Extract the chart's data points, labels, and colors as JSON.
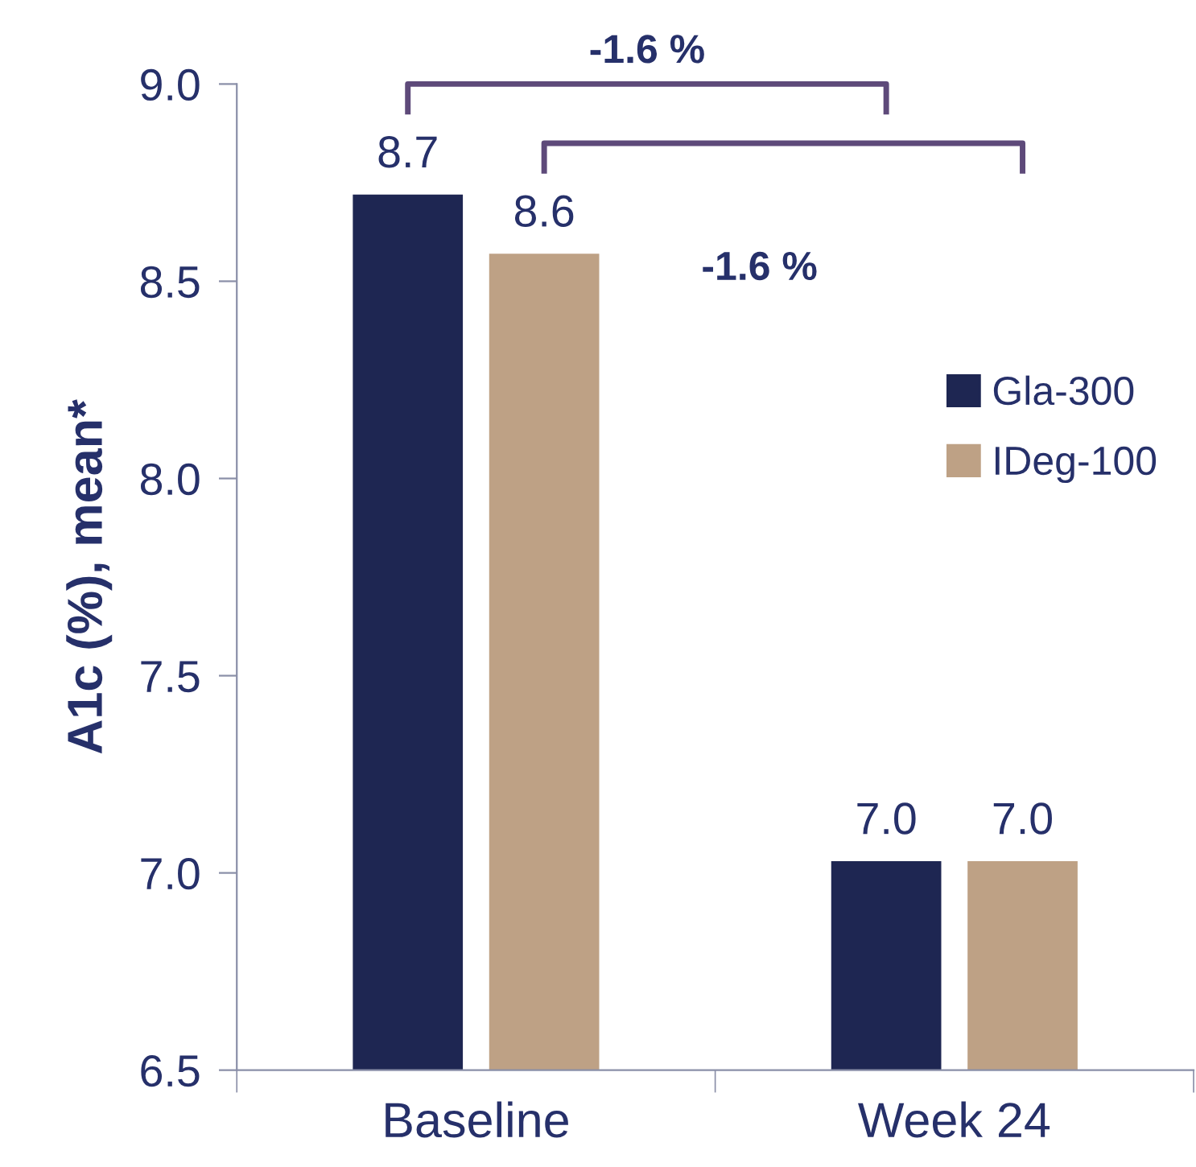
{
  "chart_data": {
    "type": "bar",
    "ylabel": "A1c (%), mean*",
    "categories": [
      "Baseline",
      "Week 24"
    ],
    "series": [
      {
        "name": "Gla-300",
        "color": "#1e2652",
        "values": [
          8.72,
          7.03
        ],
        "value_labels": [
          "8.7",
          "7.0"
        ]
      },
      {
        "name": "IDeg-100",
        "color": "#bea185",
        "values": [
          8.57,
          7.03
        ],
        "value_labels": [
          "8.6",
          "7.0"
        ]
      }
    ],
    "ylim": [
      6.5,
      9.0
    ],
    "yticks": [
      "6.5",
      "7.0",
      "7.5",
      "8.0",
      "8.5",
      "9.0"
    ],
    "annotations": [
      "-1.6 %",
      "-1.6 %"
    ],
    "grid": false,
    "legend": "right"
  }
}
